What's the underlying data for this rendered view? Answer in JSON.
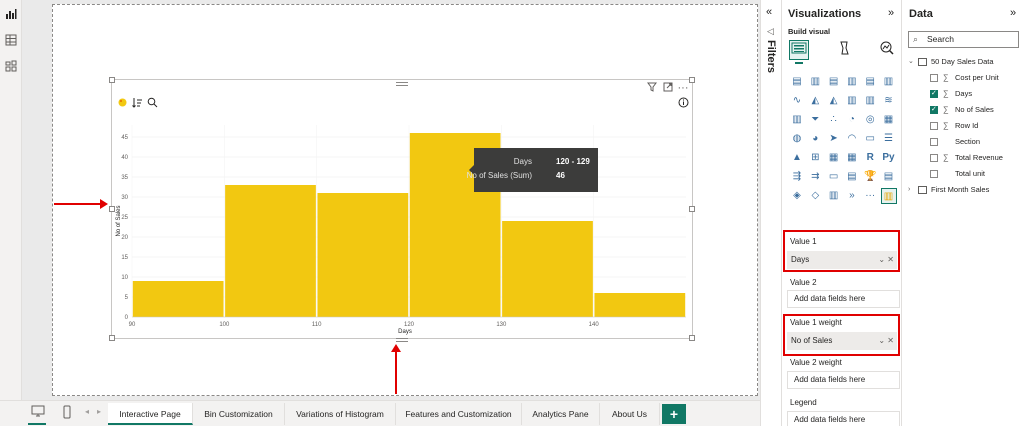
{
  "left_rail": {
    "icons": [
      "report-view-icon",
      "table-view-icon",
      "model-view-icon"
    ]
  },
  "visual": {
    "header_icons": [
      "filter-icon",
      "focus-mode-icon",
      "more-options-icon"
    ],
    "more_options_text": "···",
    "toolbar_icons": [
      "format-brush-icon",
      "sort-icon",
      "magnifier-icon"
    ],
    "info_icon": "info-icon"
  },
  "chart_data": {
    "type": "bar",
    "subtype": "histogram",
    "x_bins": [
      {
        "start": 90,
        "end": 100,
        "value": 9
      },
      {
        "start": 100,
        "end": 110,
        "value": 33
      },
      {
        "start": 110,
        "end": 120,
        "value": 31
      },
      {
        "start": 120,
        "end": 129,
        "value": 46
      },
      {
        "start": 130,
        "end": 140,
        "value": 24
      },
      {
        "start": 140,
        "end": 150,
        "value": 6
      }
    ],
    "x_ticks": [
      "90",
      "100",
      "110",
      "120",
      "130",
      "140"
    ],
    "x_tick_values": [
      90,
      100,
      110,
      120,
      130,
      140
    ],
    "xlim": [
      90,
      150
    ],
    "y_ticks": [
      "0",
      "5",
      "10",
      "15",
      "20",
      "25",
      "30",
      "35",
      "40",
      "45"
    ],
    "ylim": [
      0,
      48
    ],
    "xlabel": "Days",
    "ylabel": "No of Sales",
    "bar_color": "#f2c811",
    "grid": true,
    "tooltip": {
      "row1_label": "Days",
      "row1_value": "120 - 129",
      "row2_label": "No of Sales (Sum)",
      "row2_value": "46"
    }
  },
  "tabs": {
    "items": [
      "Interactive Page",
      "Bin Customization",
      "Variations of Histogram",
      "Features and Customization",
      "Analytics Pane",
      "About Us"
    ],
    "active_index": 0,
    "add_label": "+",
    "device_icons": [
      "desktop-view-icon",
      "mobile-view-icon"
    ],
    "prev_label": "◂",
    "next_label": "▸"
  },
  "filters": {
    "label": "Filters",
    "collapse_icon": "«"
  },
  "visualizations": {
    "title": "Visualizations",
    "collapse_icon": "»",
    "build_label": "Build visual",
    "build_icons": [
      "build-visual-icon",
      "format-visual-icon",
      "analytics-icon"
    ],
    "visual_icons": [
      "stacked-bar-icon",
      "stacked-column-icon",
      "clustered-bar-icon",
      "clustered-column-icon",
      "100-bar-icon",
      "100-column-icon",
      "line-chart-icon",
      "area-chart-icon",
      "stacked-area-icon",
      "line-column-icon",
      "line-clustered-icon",
      "ribbon-chart-icon",
      "waterfall-icon",
      "funnel-icon",
      "scatter-icon",
      "pie-icon",
      "donut-icon",
      "treemap-icon",
      "map-icon",
      "filled-map-icon",
      "azure-map-icon",
      "gauge-icon",
      "card-icon",
      "multirow-card-icon",
      "kpi-icon",
      "slicer-icon",
      "table-icon",
      "matrix-icon",
      "r-visual-icon",
      "python-visual-icon",
      "key-influencers-icon",
      "decomposition-tree-icon",
      "qa-icon",
      "smart-narrative-icon",
      "metrics-icon",
      "paginated-report-icon",
      "power-apps-icon",
      "power-automate-icon",
      "histogram-custom-icon",
      "more-visuals-icon",
      "more-dots-icon",
      "selected-histogram-icon"
    ],
    "more_dots_text": "···",
    "r_text": "R",
    "py_text": "Py",
    "wells": [
      {
        "label": "Value 1",
        "field": "Days"
      },
      {
        "label": "Value 2",
        "placeholder": "Add data fields here"
      },
      {
        "label": "Value 1 weight",
        "field": "No of Sales"
      },
      {
        "label": "Value 2 weight",
        "placeholder": "Add data fields here"
      },
      {
        "label": "Legend",
        "placeholder": "Add data fields here"
      }
    ],
    "field_ctrl": "⌄ ✕"
  },
  "data_pane": {
    "title": "Data",
    "collapse_icon": "»",
    "search_placeholder": "Search",
    "tables": [
      {
        "name": "50 Day Sales Data",
        "expanded": true,
        "fields": [
          {
            "name": "Cost per Unit",
            "checked": false,
            "sigma": true
          },
          {
            "name": "Days",
            "checked": true,
            "sigma": true
          },
          {
            "name": "No of Sales",
            "checked": true,
            "sigma": true
          },
          {
            "name": "Row Id",
            "checked": false,
            "sigma": true
          },
          {
            "name": "Section",
            "checked": false,
            "sigma": false
          },
          {
            "name": "Total Revenue",
            "checked": false,
            "sigma": true
          },
          {
            "name": "Total unit",
            "checked": false,
            "sigma": false
          }
        ]
      },
      {
        "name": "First Month Sales",
        "expanded": false,
        "fields": []
      }
    ],
    "sigma_char": "∑",
    "chev_down": "⌄",
    "chev_right": "›"
  }
}
